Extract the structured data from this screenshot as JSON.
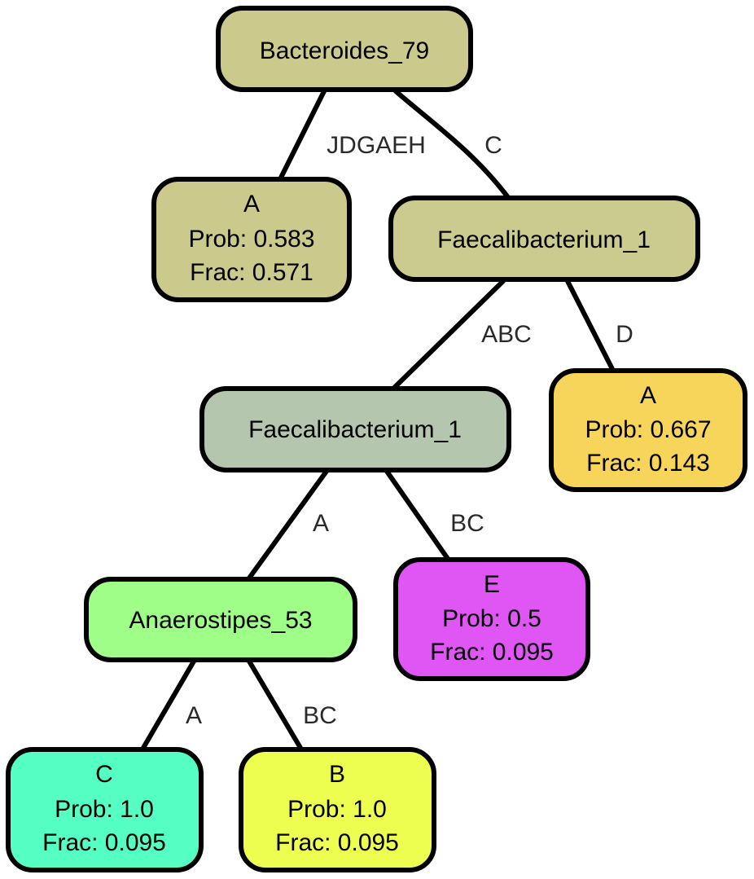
{
  "nodes": {
    "root": {
      "title": "Bacteroides_79",
      "color": "#cbca8c"
    },
    "leaf_a1": {
      "title": "A",
      "prob": "Prob: 0.583",
      "frac": "Frac: 0.571",
      "color": "#cbc98c"
    },
    "faec_top": {
      "title": "Faecalibacterium_1",
      "color": "#cbca8f"
    },
    "leaf_a2": {
      "title": "A",
      "prob": "Prob: 0.667",
      "frac": "Frac: 0.143",
      "color": "#f7d55a"
    },
    "faec_mid": {
      "title": "Faecalibacterium_1",
      "color": "#b4c6ae"
    },
    "anaero": {
      "title": "Anaerostipes_53",
      "color": "#9ffe87"
    },
    "leaf_e": {
      "title": "E",
      "prob": "Prob: 0.5",
      "frac": "Frac: 0.095",
      "color": "#df56f5"
    },
    "leaf_c": {
      "title": "C",
      "prob": "Prob: 1.0",
      "frac": "Frac: 0.095",
      "color": "#55fec2"
    },
    "leaf_b": {
      "title": "B",
      "prob": "Prob: 1.0",
      "frac": "Frac: 0.095",
      "color": "#eefe51"
    }
  },
  "edges": {
    "root_leafa1": "JDGAEH",
    "root_faectop": "C",
    "faectop_faecmid": "ABC",
    "faectop_leafa2": "D",
    "faecmid_anaero": "A",
    "faecmid_leafe": "BC",
    "anaero_leafc": "A",
    "anaero_leafb": "BC"
  }
}
